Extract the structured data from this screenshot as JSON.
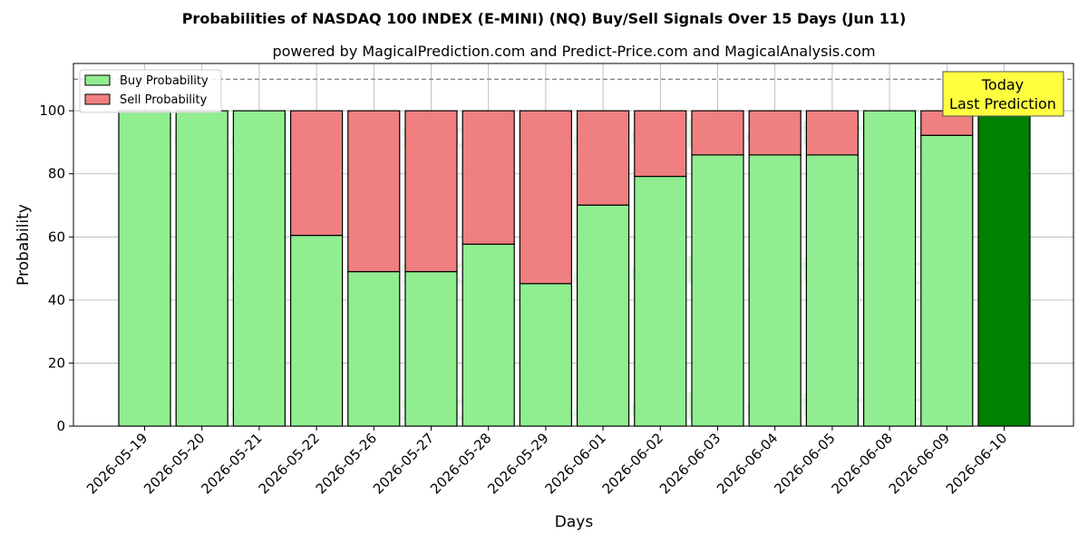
{
  "chart_data": {
    "type": "bar",
    "stacked": true,
    "title": "Probabilities of NASDAQ 100 INDEX (E-MINI) (NQ) Buy/Sell Signals Over 15 Days (Jun 11)",
    "subtitle": "powered by MagicalPrediction.com and Predict-Price.com and MagicalAnalysis.com",
    "xlabel": "Days",
    "ylabel": "Probability",
    "ylim": [
      0,
      115
    ],
    "yticks": [
      0,
      20,
      40,
      60,
      80,
      100
    ],
    "grid": true,
    "legend_placement": "top-left",
    "reference_line": 110,
    "categories": [
      "2026-05-19",
      "2026-05-20",
      "2026-05-21",
      "2026-05-22",
      "2026-05-26",
      "2026-05-27",
      "2026-05-28",
      "2026-05-29",
      "2026-06-01",
      "2026-06-02",
      "2026-06-03",
      "2026-06-04",
      "2026-06-05",
      "2026-06-08",
      "2026-06-09",
      "2026-06-10"
    ],
    "series": [
      {
        "name": "Buy Probability",
        "color": "#90ee90",
        "values": [
          100,
          100,
          100,
          60.5,
          49,
          49,
          57.7,
          45.2,
          70.1,
          79.2,
          86,
          86,
          86,
          100,
          92.2,
          100
        ]
      },
      {
        "name": "Sell Probability",
        "color": "#f08080",
        "values": [
          0,
          0,
          0,
          39.5,
          51,
          51,
          42.3,
          54.8,
          29.9,
          20.8,
          14,
          14,
          14,
          0,
          7.8,
          0
        ]
      }
    ],
    "highlight": {
      "index": 15,
      "color": "#008000"
    },
    "annotation": "Today\nLast Prediction",
    "annotation_color": "#ffff40",
    "watermarks": [
      "MagicalAnalysis.com",
      "MagicalPrediction.com"
    ]
  }
}
